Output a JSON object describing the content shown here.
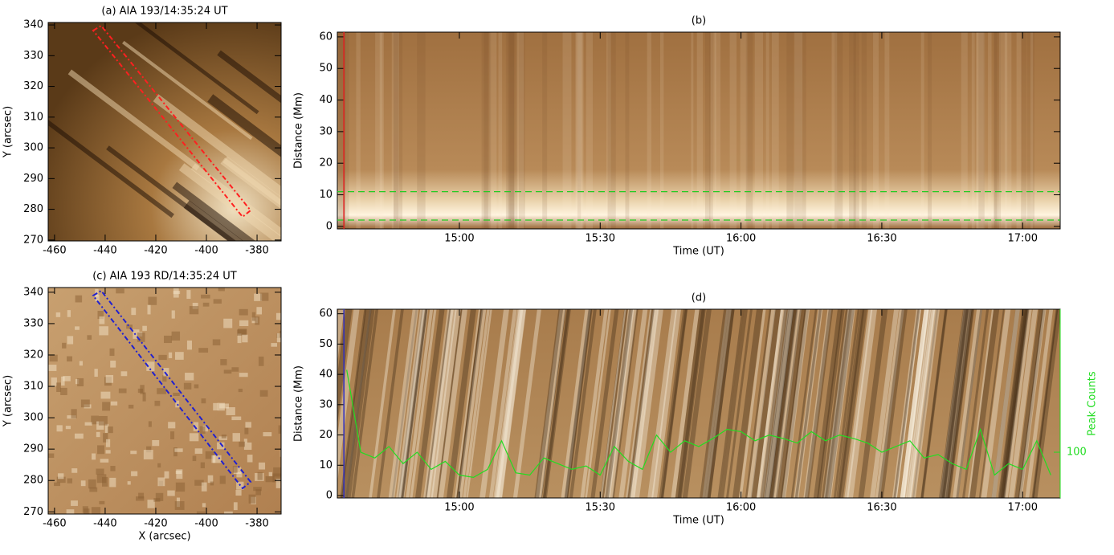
{
  "chart_data": [
    {
      "type": "image",
      "title": "(a) AIA 193/14:35:24 UT",
      "ylabel": "Y (arcsec)",
      "xlim": [
        -462.5,
        -370.5
      ],
      "ylim": [
        269.7,
        340.8
      ],
      "xticks": [
        -460,
        -440,
        -420,
        -400,
        -380
      ],
      "yticks": [
        270,
        280,
        290,
        300,
        310,
        320,
        330,
        340
      ]
    },
    {
      "type": "image",
      "title": "(b)",
      "xlabel": "Time (UT)",
      "ylabel": "Distance (Mm)",
      "xlim": [
        874,
        1028
      ],
      "ylim": [
        -0.8,
        61.5
      ],
      "xticks": [
        {
          "value": 900,
          "label": "15:00"
        },
        {
          "value": 930,
          "label": "15:30"
        },
        {
          "value": 960,
          "label": "16:00"
        },
        {
          "value": 990,
          "label": "16:30"
        },
        {
          "value": 1020,
          "label": "17:00"
        }
      ],
      "yticks": [
        0,
        10,
        20,
        30,
        40,
        50,
        60
      ],
      "hlines": [
        2,
        11
      ],
      "cursor_time": 875.4,
      "cursor_color": "#e02020",
      "hline_color": "#22cc22"
    },
    {
      "type": "image",
      "title": "(c) AIA 193 RD/14:35:24 UT",
      "xlabel": "X (arcsec)",
      "ylabel": "Y (arcsec)",
      "xlim": [
        -462.5,
        -370.5
      ],
      "ylim": [
        269.3,
        341.5
      ],
      "xticks": [
        -460,
        -440,
        -420,
        -400,
        -380
      ],
      "yticks": [
        270,
        280,
        290,
        300,
        310,
        320,
        330,
        340
      ]
    },
    {
      "type": "image",
      "title": "(d)",
      "xlabel": "Time (UT)",
      "ylabel": "Distance (Mm)",
      "y2label": "Peak Counts",
      "xlim": [
        874,
        1028
      ],
      "ylim": [
        -0.8,
        61.5
      ],
      "y2lim": [
        60,
        225
      ],
      "xticks": [
        {
          "value": 900,
          "label": "15:00"
        },
        {
          "value": 930,
          "label": "15:30"
        },
        {
          "value": 960,
          "label": "16:00"
        },
        {
          "value": 990,
          "label": "16:30"
        },
        {
          "value": 1020,
          "label": "17:00"
        }
      ],
      "yticks": [
        0,
        10,
        20,
        30,
        40,
        50,
        60
      ],
      "y2ticks": [
        100
      ],
      "cursor_time": 875.4,
      "cursor_color": "#3030c0",
      "series": [
        {
          "axis": "y2",
          "color": "#22dd22",
          "x": [
            876,
            879,
            882,
            885,
            888,
            891,
            894,
            897,
            900,
            903,
            906,
            909,
            912,
            915,
            918,
            921,
            924,
            927,
            930,
            933,
            936,
            939,
            942,
            945,
            948,
            951,
            954,
            957,
            960,
            963,
            966,
            969,
            972,
            975,
            978,
            981,
            984,
            987,
            990,
            993,
            996,
            999,
            1002,
            1005,
            1008,
            1011,
            1014,
            1017,
            1020,
            1023,
            1026
          ],
          "values": [
            172,
            100,
            95,
            105,
            90,
            100,
            85,
            92,
            80,
            78,
            85,
            110,
            82,
            80,
            95,
            90,
            85,
            88,
            80,
            105,
            92,
            85,
            115,
            100,
            110,
            105,
            112,
            120,
            118,
            110,
            115,
            112,
            108,
            118,
            110,
            115,
            112,
            108,
            100,
            105,
            110,
            95,
            98,
            90,
            85,
            120,
            80,
            90,
            85,
            110,
            80
          ]
        }
      ]
    }
  ]
}
